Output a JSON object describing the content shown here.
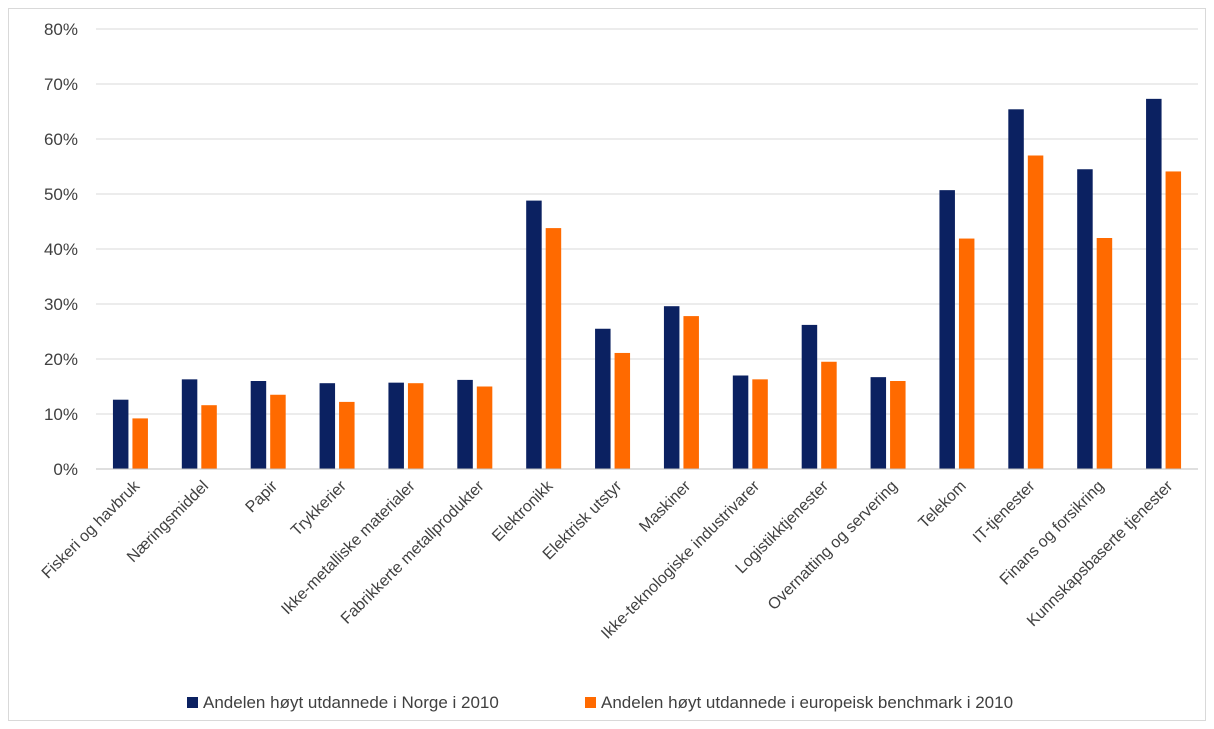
{
  "colors": {
    "norway": "#0b2161",
    "europe": "#ff6a00",
    "grid": "#d9d9d9",
    "axis": "#bfbfbf"
  },
  "chart_data": {
    "type": "bar",
    "title": "",
    "xlabel": "",
    "ylabel": "",
    "ylim": [
      0,
      80
    ],
    "yticks": [
      "0%",
      "10%",
      "20%",
      "30%",
      "40%",
      "50%",
      "60%",
      "70%",
      "80%"
    ],
    "grid": "horizontal",
    "legend_position": "bottom",
    "categories": [
      "Fiskeri og havbruk",
      "Næringsmiddel",
      "Papir",
      "Trykkerier",
      "Ikke-metalliske materialer",
      "Fabrikkerte metallprodukter",
      "Elektronikk",
      "Elektrisk utstyr",
      "Maskiner",
      "Ikke-teknologiske industrivarer",
      "Logistikktjenester",
      "Overnatting og servering",
      "Telekom",
      "IT-tjenester",
      "Finans og forsikring",
      "Kunnskapsbaserte tjenester"
    ],
    "series": [
      {
        "name": "Andelen høyt utdannede i Norge i 2010",
        "color": "#0b2161",
        "values": [
          12.6,
          16.3,
          16.0,
          15.6,
          15.7,
          16.2,
          48.8,
          25.5,
          29.6,
          17.0,
          26.2,
          16.7,
          50.7,
          65.4,
          54.5,
          67.3
        ]
      },
      {
        "name": "Andelen høyt utdannede i europeisk benchmark i 2010",
        "color": "#ff6a00",
        "values": [
          9.2,
          11.6,
          13.5,
          12.2,
          15.6,
          15.0,
          43.8,
          21.1,
          27.8,
          16.3,
          19.5,
          16.0,
          41.9,
          57.0,
          42.0,
          54.1
        ]
      }
    ]
  }
}
